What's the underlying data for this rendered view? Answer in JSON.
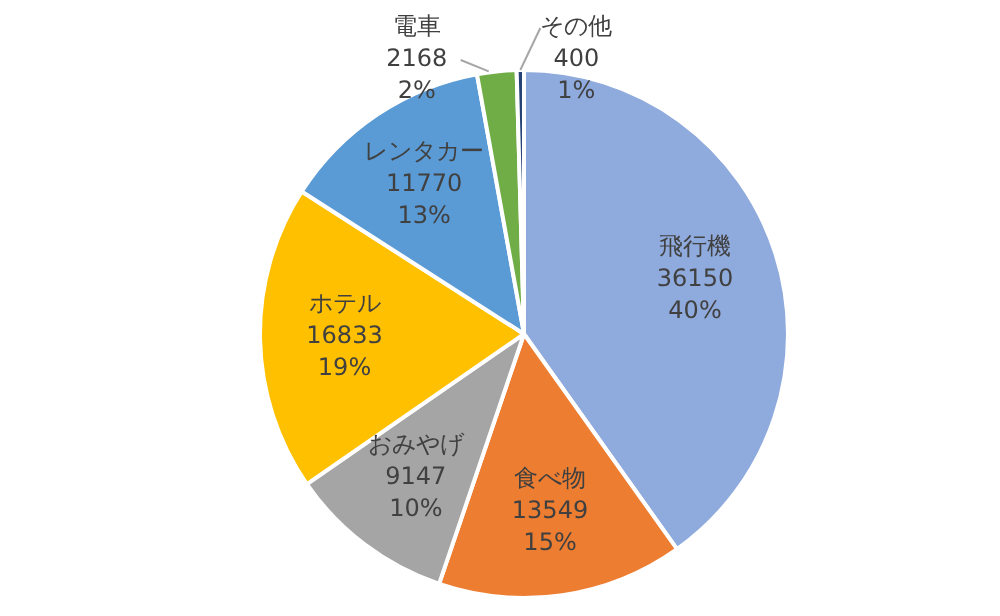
{
  "chart_data": {
    "type": "pie",
    "categories": [
      "飛行機",
      "食べ物",
      "おみやげ",
      "ホテル",
      "レンタカー",
      "電車",
      "その他"
    ],
    "values": [
      36150,
      13549,
      9147,
      16833,
      11770,
      2168,
      400
    ],
    "value_labels": [
      "36150\n40%",
      "13549\n15%",
      "9147\n10%",
      "16833\n19%",
      "11770\n13%",
      "2168\n2%",
      "400\n1%"
    ],
    "colors": [
      "#8faadc",
      "#ed7d31",
      "#a5a5a5",
      "#ffc000",
      "#5b9bd5",
      "#70ad47",
      "#264478"
    ],
    "legend": false
  }
}
